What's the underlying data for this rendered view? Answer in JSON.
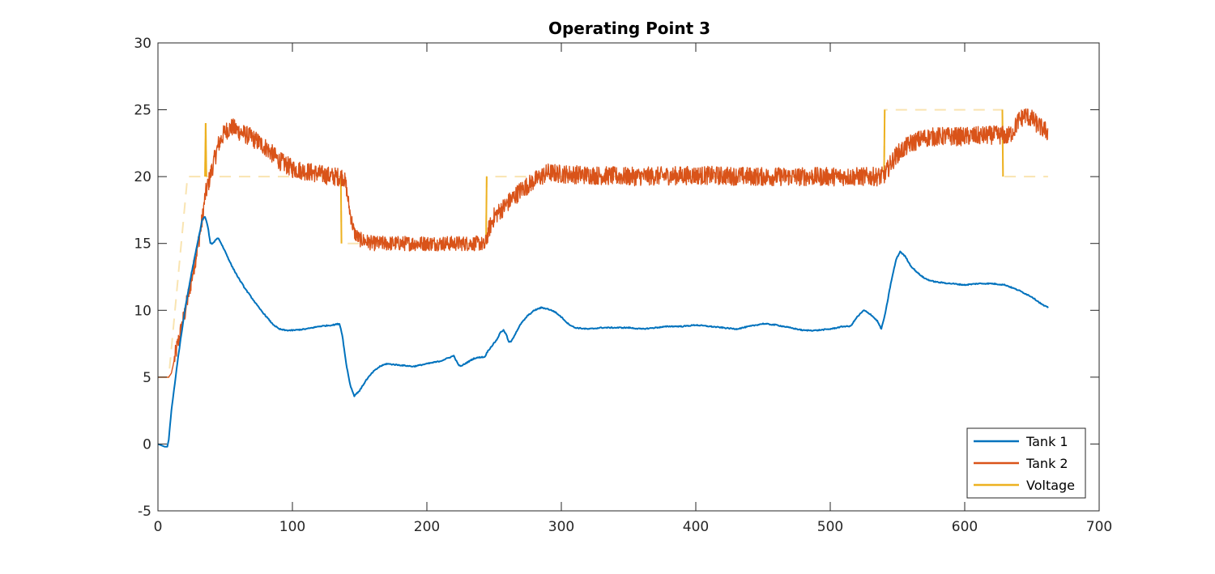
{
  "chart_data": {
    "type": "line",
    "title": "Operating Point 3",
    "xlabel": "",
    "ylabel": "",
    "xlim": [
      0,
      700
    ],
    "ylim": [
      -5,
      30
    ],
    "xticks": [
      0,
      100,
      200,
      300,
      400,
      500,
      600,
      700
    ],
    "yticks": [
      -5,
      0,
      5,
      10,
      15,
      20,
      25,
      30
    ],
    "grid": false,
    "legend": "bottom-right",
    "series": [
      {
        "name": "Tank 1",
        "color": "#0072BD",
        "noise": 0.08,
        "points": [
          [
            0,
            0
          ],
          [
            5,
            -0.2
          ],
          [
            7,
            -0.2
          ],
          [
            8,
            0.3
          ],
          [
            10,
            2.5
          ],
          [
            15,
            6.5
          ],
          [
            20,
            10
          ],
          [
            25,
            12.8
          ],
          [
            30,
            15.3
          ],
          [
            33,
            16.8
          ],
          [
            35,
            17.0
          ],
          [
            37,
            16.3
          ],
          [
            39,
            15.0
          ],
          [
            41,
            15.0
          ],
          [
            43,
            15.3
          ],
          [
            45,
            15.4
          ],
          [
            47,
            15.0
          ],
          [
            50,
            14.4
          ],
          [
            55,
            13.3
          ],
          [
            60,
            12.4
          ],
          [
            65,
            11.6
          ],
          [
            70,
            10.9
          ],
          [
            75,
            10.2
          ],
          [
            80,
            9.6
          ],
          [
            85,
            9.0
          ],
          [
            90,
            8.6
          ],
          [
            95,
            8.5
          ],
          [
            100,
            8.5
          ],
          [
            110,
            8.6
          ],
          [
            120,
            8.8
          ],
          [
            130,
            8.9
          ],
          [
            135,
            9.0
          ],
          [
            137,
            8.2
          ],
          [
            140,
            6.0
          ],
          [
            143,
            4.4
          ],
          [
            146,
            3.6
          ],
          [
            150,
            4.0
          ],
          [
            155,
            4.8
          ],
          [
            160,
            5.4
          ],
          [
            165,
            5.8
          ],
          [
            170,
            6.0
          ],
          [
            180,
            5.9
          ],
          [
            190,
            5.8
          ],
          [
            200,
            6.0
          ],
          [
            210,
            6.2
          ],
          [
            215,
            6.4
          ],
          [
            220,
            6.6
          ],
          [
            223,
            6.0
          ],
          [
            225,
            5.8
          ],
          [
            230,
            6.1
          ],
          [
            235,
            6.4
          ],
          [
            240,
            6.5
          ],
          [
            243,
            6.5
          ],
          [
            245,
            6.9
          ],
          [
            248,
            7.3
          ],
          [
            252,
            7.8
          ],
          [
            255,
            8.4
          ],
          [
            257,
            8.5
          ],
          [
            259,
            8.2
          ],
          [
            261,
            7.6
          ],
          [
            263,
            7.7
          ],
          [
            266,
            8.3
          ],
          [
            270,
            9.0
          ],
          [
            275,
            9.6
          ],
          [
            280,
            10.0
          ],
          [
            285,
            10.2
          ],
          [
            290,
            10.1
          ],
          [
            295,
            9.9
          ],
          [
            300,
            9.5
          ],
          [
            305,
            9.0
          ],
          [
            310,
            8.7
          ],
          [
            320,
            8.6
          ],
          [
            330,
            8.7
          ],
          [
            340,
            8.7
          ],
          [
            350,
            8.7
          ],
          [
            360,
            8.6
          ],
          [
            370,
            8.7
          ],
          [
            380,
            8.8
          ],
          [
            390,
            8.8
          ],
          [
            400,
            8.9
          ],
          [
            410,
            8.8
          ],
          [
            420,
            8.7
          ],
          [
            430,
            8.6
          ],
          [
            440,
            8.8
          ],
          [
            450,
            9.0
          ],
          [
            460,
            8.9
          ],
          [
            470,
            8.7
          ],
          [
            480,
            8.5
          ],
          [
            490,
            8.5
          ],
          [
            500,
            8.6
          ],
          [
            510,
            8.8
          ],
          [
            515,
            8.8
          ],
          [
            520,
            9.5
          ],
          [
            525,
            10.0
          ],
          [
            530,
            9.7
          ],
          [
            535,
            9.2
          ],
          [
            538,
            8.6
          ],
          [
            541,
            9.8
          ],
          [
            545,
            12.0
          ],
          [
            549,
            13.8
          ],
          [
            552,
            14.4
          ],
          [
            556,
            14.0
          ],
          [
            560,
            13.3
          ],
          [
            565,
            12.8
          ],
          [
            570,
            12.4
          ],
          [
            575,
            12.2
          ],
          [
            580,
            12.1
          ],
          [
            590,
            12.0
          ],
          [
            600,
            11.9
          ],
          [
            610,
            12.0
          ],
          [
            620,
            12.0
          ],
          [
            630,
            11.9
          ],
          [
            640,
            11.5
          ],
          [
            650,
            11.0
          ],
          [
            658,
            10.4
          ],
          [
            662,
            10.2
          ]
        ]
      },
      {
        "name": "Tank 2",
        "color": "#D95319",
        "noise": 1.4,
        "points": [
          [
            0,
            5
          ],
          [
            8,
            5
          ],
          [
            10,
            5.3
          ],
          [
            15,
            7.6
          ],
          [
            20,
            9.8
          ],
          [
            25,
            12.3
          ],
          [
            30,
            15.0
          ],
          [
            33,
            16.8
          ],
          [
            35,
            18.5
          ],
          [
            40,
            20.5
          ],
          [
            45,
            22.4
          ],
          [
            50,
            23.4
          ],
          [
            55,
            23.7
          ],
          [
            60,
            23.4
          ],
          [
            70,
            22.9
          ],
          [
            80,
            22.2
          ],
          [
            90,
            21.2
          ],
          [
            100,
            20.6
          ],
          [
            110,
            20.4
          ],
          [
            120,
            20.2
          ],
          [
            130,
            20.0
          ],
          [
            135,
            20.0
          ],
          [
            138,
            20.0
          ],
          [
            140,
            19.2
          ],
          [
            143,
            17.2
          ],
          [
            146,
            15.8
          ],
          [
            150,
            15.3
          ],
          [
            160,
            15.0
          ],
          [
            180,
            15.0
          ],
          [
            200,
            15.0
          ],
          [
            220,
            15.0
          ],
          [
            240,
            15.0
          ],
          [
            243,
            14.8
          ],
          [
            246,
            16.0
          ],
          [
            250,
            17.0
          ],
          [
            260,
            18.0
          ],
          [
            270,
            19.0
          ],
          [
            280,
            19.7
          ],
          [
            290,
            20.3
          ],
          [
            300,
            20.2
          ],
          [
            350,
            20.0
          ],
          [
            400,
            20.1
          ],
          [
            450,
            20.0
          ],
          [
            500,
            20.0
          ],
          [
            520,
            20.0
          ],
          [
            538,
            20.0
          ],
          [
            541,
            20.2
          ],
          [
            545,
            21.0
          ],
          [
            550,
            21.7
          ],
          [
            560,
            22.5
          ],
          [
            570,
            22.9
          ],
          [
            580,
            23.0
          ],
          [
            600,
            23.0
          ],
          [
            620,
            23.1
          ],
          [
            628,
            23.1
          ],
          [
            632,
            23.0
          ],
          [
            636,
            23.4
          ],
          [
            640,
            24.2
          ],
          [
            645,
            24.6
          ],
          [
            650,
            24.3
          ],
          [
            655,
            23.8
          ],
          [
            662,
            23.3
          ]
        ]
      },
      {
        "name": "Voltage",
        "color": "#EDB120",
        "steps": [
          [
            0,
            5
          ],
          [
            8,
            5
          ],
          [
            22,
            20
          ],
          [
            35,
            20
          ],
          [
            35.5,
            24
          ],
          [
            36,
            20
          ],
          [
            136,
            20
          ],
          [
            136.5,
            15
          ],
          [
            244,
            15
          ],
          [
            244.5,
            20
          ],
          [
            540,
            20
          ],
          [
            540.5,
            25
          ],
          [
            628,
            25
          ],
          [
            628.5,
            20
          ],
          [
            662,
            20
          ]
        ]
      }
    ]
  }
}
